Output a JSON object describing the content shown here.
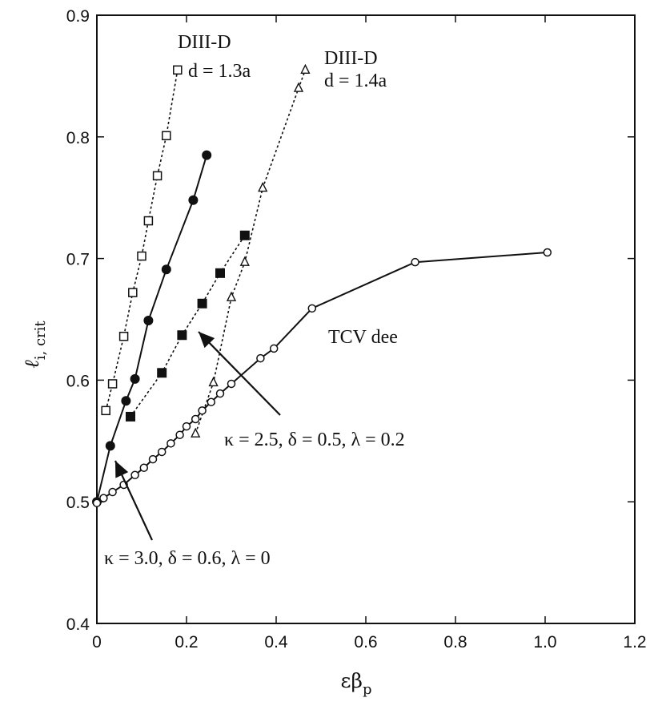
{
  "chart_data": {
    "type": "line",
    "title": "",
    "xlabel": "εβ",
    "xlabel_sub": "p",
    "ylabel": "ℓ",
    "ylabel_sub": "i, crit",
    "xlim": [
      0,
      1.2
    ],
    "ylim": [
      0.4,
      0.9
    ],
    "xticks": [
      0,
      0.2,
      0.4,
      0.6,
      0.8,
      1.0,
      1.2
    ],
    "xtick_labels": [
      "0",
      "0.2",
      "0.4",
      "0.6",
      "0.8",
      "1.0",
      "1.2"
    ],
    "yticks": [
      0.4,
      0.5,
      0.6,
      0.7,
      0.8,
      0.9
    ],
    "ytick_labels": [
      "0.4",
      "0.5",
      "0.6",
      "0.7",
      "0.8",
      "0.9"
    ],
    "grid": false,
    "legend": "none",
    "series": [
      {
        "marker": "open-square",
        "line": "dashed",
        "x": [
          0.02,
          0.035,
          0.06,
          0.08,
          0.1,
          0.115,
          0.135,
          0.155,
          0.18
        ],
        "y": [
          0.575,
          0.597,
          0.636,
          0.672,
          0.702,
          0.731,
          0.768,
          0.801,
          0.855
        ]
      },
      {
        "marker": "filled-circle",
        "line": "solid",
        "x": [
          0.0,
          0.03,
          0.065,
          0.085,
          0.115,
          0.155,
          0.215,
          0.245
        ],
        "y": [
          0.5,
          0.546,
          0.583,
          0.601,
          0.649,
          0.691,
          0.748,
          0.785
        ]
      },
      {
        "marker": "filled-square",
        "line": "dashed",
        "x": [
          0.075,
          0.145,
          0.19,
          0.235,
          0.275,
          0.33
        ],
        "y": [
          0.57,
          0.606,
          0.637,
          0.663,
          0.688,
          0.719
        ]
      },
      {
        "marker": "open-triangle",
        "line": "dashed",
        "x": [
          0.22,
          0.26,
          0.3,
          0.33,
          0.37,
          0.45,
          0.465
        ],
        "y": [
          0.556,
          0.598,
          0.668,
          0.697,
          0.758,
          0.84,
          0.855
        ]
      },
      {
        "marker": "open-circle",
        "line": "solid",
        "x": [
          0.0,
          0.015,
          0.035,
          0.06,
          0.085,
          0.105,
          0.125,
          0.145,
          0.165,
          0.185,
          0.2,
          0.22,
          0.235,
          0.255,
          0.275,
          0.3,
          0.365,
          0.395,
          0.48,
          0.71,
          1.005
        ],
        "y": [
          0.499,
          0.503,
          0.508,
          0.514,
          0.522,
          0.528,
          0.535,
          0.541,
          0.548,
          0.555,
          0.562,
          0.568,
          0.575,
          0.582,
          0.589,
          0.597,
          0.618,
          0.626,
          0.659,
          0.697,
          0.705
        ]
      }
    ],
    "annotations": {
      "d13_title": "DIII-D",
      "d13_sub": "d = 1.3a",
      "d14_title": "DIII-D",
      "d14_sub": "d = 1.4a",
      "tcv": "TCV dee",
      "k25": "κ = 2.5, δ = 0.5, λ = 0.2",
      "k30": "κ = 3.0, δ = 0.6, λ = 0"
    }
  }
}
